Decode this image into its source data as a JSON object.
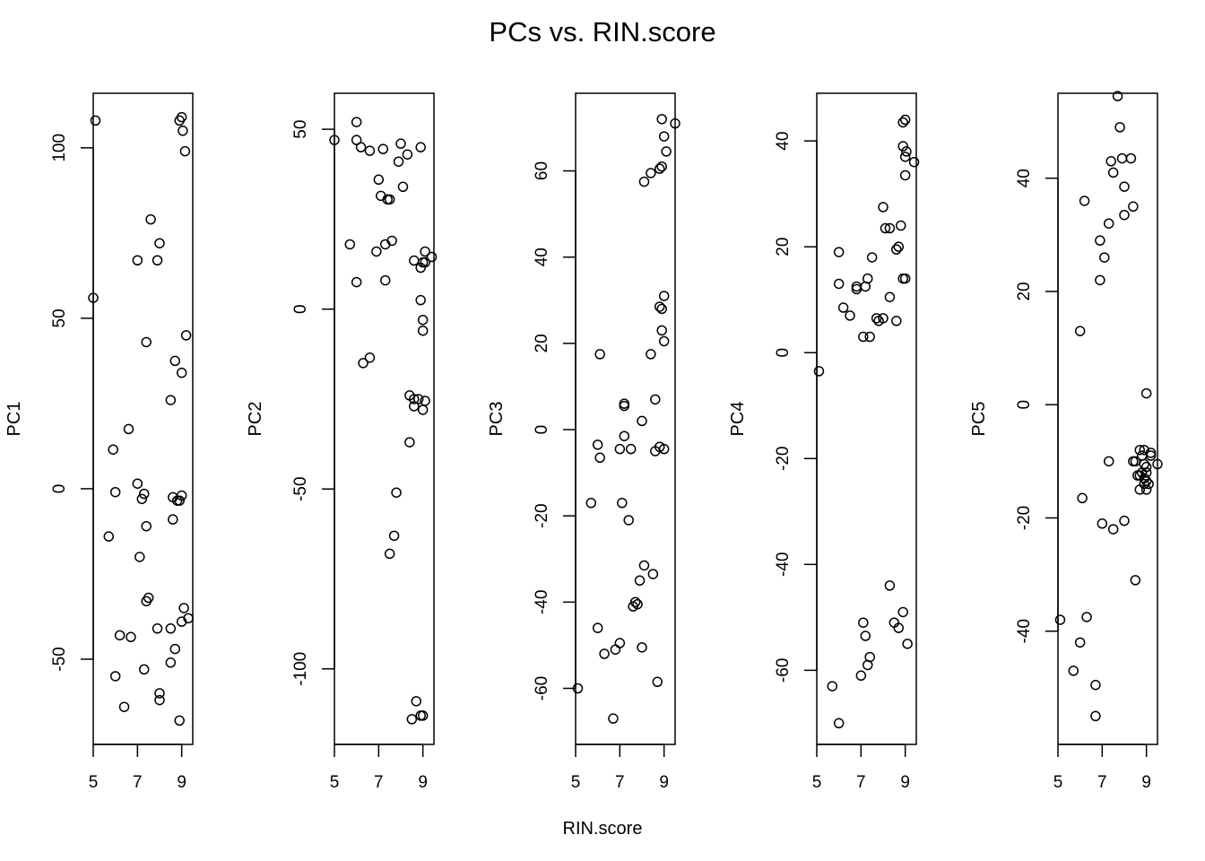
{
  "figure": {
    "title": "PCs vs. RIN.score",
    "xlabel": "RIN.score"
  },
  "chart_data": [
    {
      "type": "scatter",
      "ylabel": "PC1",
      "xlim": [
        5,
        9.5
      ],
      "ylim": [
        -75,
        116
      ],
      "xticks": [
        5,
        7,
        9
      ],
      "yticks": [
        -50,
        0,
        50,
        100
      ],
      "x": [
        5.1,
        9.0,
        9.05,
        9.15,
        8.9,
        7.6,
        8.0,
        7.0,
        7.9,
        5.0,
        7.4,
        9.2,
        8.7,
        9.0,
        8.5,
        6.6,
        5.9,
        7.0,
        6.0,
        7.3,
        7.2,
        8.6,
        8.8,
        9.0,
        8.9,
        7.4,
        5.7,
        8.6,
        7.1,
        7.5,
        7.4,
        9.1,
        9.3,
        9.0,
        7.9,
        8.5,
        8.7,
        6.7,
        6.2,
        8.5,
        7.3,
        6.0,
        8.0,
        8.0,
        6.4,
        8.9
      ],
      "y": [
        108,
        109,
        105,
        99,
        108,
        79,
        72,
        67,
        67,
        56,
        43,
        45,
        37.5,
        34,
        26,
        17.5,
        11.5,
        1.5,
        -1,
        -1.5,
        -3,
        -2.5,
        -3.5,
        -2,
        -3.5,
        -11,
        -14,
        -9,
        -20,
        -32,
        -33,
        -35,
        -38,
        -39,
        -41,
        -41,
        -47,
        -43.5,
        -43,
        -51,
        -53,
        -55,
        -60,
        -62,
        -64,
        -68
      ]
    },
    {
      "type": "scatter",
      "ylabel": "PC2",
      "xlim": [
        5,
        9.5
      ],
      "ylim": [
        -121,
        60
      ],
      "xticks": [
        5,
        7,
        9
      ],
      "yticks": [
        -100,
        -50,
        0,
        50
      ],
      "x": [
        6.0,
        5.0,
        6.0,
        6.2,
        6.6,
        7.2,
        8.0,
        8.3,
        8.9,
        7.9,
        8.1,
        7.0,
        7.1,
        7.5,
        7.4,
        5.7,
        7.6,
        7.3,
        9.1,
        9.0,
        9.4,
        9.1,
        6.9,
        8.6,
        8.9,
        7.3,
        6.0,
        8.9,
        9.0,
        9.0,
        6.6,
        6.3,
        8.4,
        8.8,
        9.1,
        8.6,
        9.0,
        8.4,
        8.6,
        7.8,
        7.7,
        7.5,
        8.7,
        8.9,
        8.5,
        9.0
      ],
      "y": [
        52,
        47,
        47,
        45,
        44,
        44.5,
        46,
        43,
        45,
        41,
        34,
        36,
        31.5,
        30.5,
        30.5,
        18,
        19,
        18,
        16,
        13,
        14.5,
        13,
        16,
        13.5,
        11.5,
        8,
        7.5,
        2.5,
        -3,
        -6,
        -13.5,
        -15,
        -24,
        -25,
        -25.5,
        -27,
        -28,
        -37,
        -25,
        -51,
        -63,
        -68,
        -109,
        -113,
        -114,
        -113
      ]
    },
    {
      "type": "scatter",
      "ylabel": "PC3",
      "xlim": [
        5,
        9.5
      ],
      "ylim": [
        -73,
        78
      ],
      "xticks": [
        5,
        7,
        9
      ],
      "yticks": [
        -60,
        -40,
        -20,
        0,
        20,
        40,
        60
      ],
      "x": [
        8.9,
        9.5,
        9.0,
        9.1,
        8.4,
        8.8,
        8.9,
        8.1,
        9.0,
        8.9,
        8.8,
        8.9,
        6.1,
        8.4,
        9.0,
        8.6,
        7.2,
        7.2,
        8.0,
        6.0,
        6.1,
        7.2,
        7.0,
        7.5,
        8.6,
        8.8,
        9.0,
        7.1,
        7.4,
        5.7,
        8.1,
        8.5,
        7.9,
        7.6,
        7.7,
        7.8,
        6.0,
        7.0,
        6.8,
        6.3,
        8.0,
        8.7,
        5.1,
        6.7
      ],
      "y": [
        72,
        71,
        68,
        64.5,
        59.5,
        60.5,
        61,
        57.5,
        31,
        28,
        28.5,
        23,
        17.5,
        17.5,
        20.5,
        7,
        6,
        5.5,
        2,
        -3.5,
        -6.5,
        -1.5,
        -4.5,
        -4.5,
        -5,
        -4,
        -4.5,
        -17,
        -21,
        -17,
        -31.5,
        -33.5,
        -35,
        -41,
        -40,
        -40.5,
        -46,
        -49.5,
        -51,
        -52,
        -50.5,
        -58.5,
        -60,
        -67
      ]
    },
    {
      "type": "scatter",
      "ylabel": "PC4",
      "xlim": [
        5,
        9.5
      ],
      "ylim": [
        -74,
        49
      ],
      "xticks": [
        5,
        7,
        9
      ],
      "yticks": [
        -60,
        -40,
        -20,
        0,
        20,
        40
      ],
      "x": [
        9.0,
        8.9,
        9.4,
        9.05,
        9.0,
        8.9,
        9.0,
        8.0,
        8.8,
        8.1,
        8.3,
        8.6,
        8.7,
        7.5,
        9.0,
        8.9,
        6.0,
        6.0,
        7.3,
        6.8,
        7.2,
        6.8,
        6.2,
        6.5,
        8.3,
        7.8,
        8.6,
        7.7,
        8.0,
        7.1,
        7.4,
        5.1,
        8.3,
        8.9,
        7.1,
        8.5,
        7.2,
        7.3,
        8.7,
        9.1,
        7.4,
        7.0,
        5.7,
        6.0
      ],
      "y": [
        44,
        43.5,
        36,
        38,
        37,
        39,
        33.5,
        27.5,
        24,
        23.5,
        23.5,
        19.5,
        20,
        18,
        14,
        14,
        19,
        13,
        14,
        12.5,
        12.5,
        12,
        8.5,
        7,
        10.5,
        6,
        6,
        6.5,
        6.5,
        3,
        3,
        -3.5,
        -44,
        -49,
        -51,
        -51,
        -53.5,
        -59,
        -52,
        -55,
        -57.5,
        -61,
        -63,
        -70
      ]
    },
    {
      "type": "scatter",
      "ylabel": "PC5",
      "xlim": [
        5,
        9.5
      ],
      "ylim": [
        -60,
        55
      ],
      "xticks": [
        5,
        7,
        9
      ],
      "yticks": [
        -40,
        -20,
        0,
        20,
        40
      ],
      "x": [
        7.7,
        7.8,
        7.4,
        8.3,
        8.4,
        8.0,
        8.0,
        7.5,
        7.9,
        6.2,
        7.3,
        6.9,
        7.1,
        6.9,
        6.0,
        9.0,
        8.7,
        8.9,
        8.8,
        8.9,
        9.2,
        9.0,
        8.5,
        9.2,
        9.0,
        9.5,
        7.3,
        8.8,
        8.4,
        8.6,
        8.7,
        8.9,
        9.1,
        9.0,
        8.9,
        9.0,
        6.1,
        7.0,
        7.5,
        8.0,
        8.5,
        5.1,
        6.3,
        6.0,
        5.7,
        6.7,
        6.7,
        8.7
      ],
      "y": [
        54.5,
        49,
        43,
        43.5,
        35,
        33.5,
        38.5,
        41,
        43.5,
        36,
        32,
        29,
        26,
        22,
        13,
        2,
        -8,
        -8,
        -9,
        -10.5,
        -8.5,
        -12,
        -10,
        -9,
        -11,
        -10.5,
        -10,
        -12,
        -10,
        -12.5,
        -12.5,
        -13,
        -14,
        -13.5,
        -14,
        -15,
        -16.5,
        -21,
        -22,
        -20.5,
        -31,
        -38,
        -37.5,
        -42,
        -47,
        -49.5,
        -55,
        -15
      ]
    }
  ]
}
